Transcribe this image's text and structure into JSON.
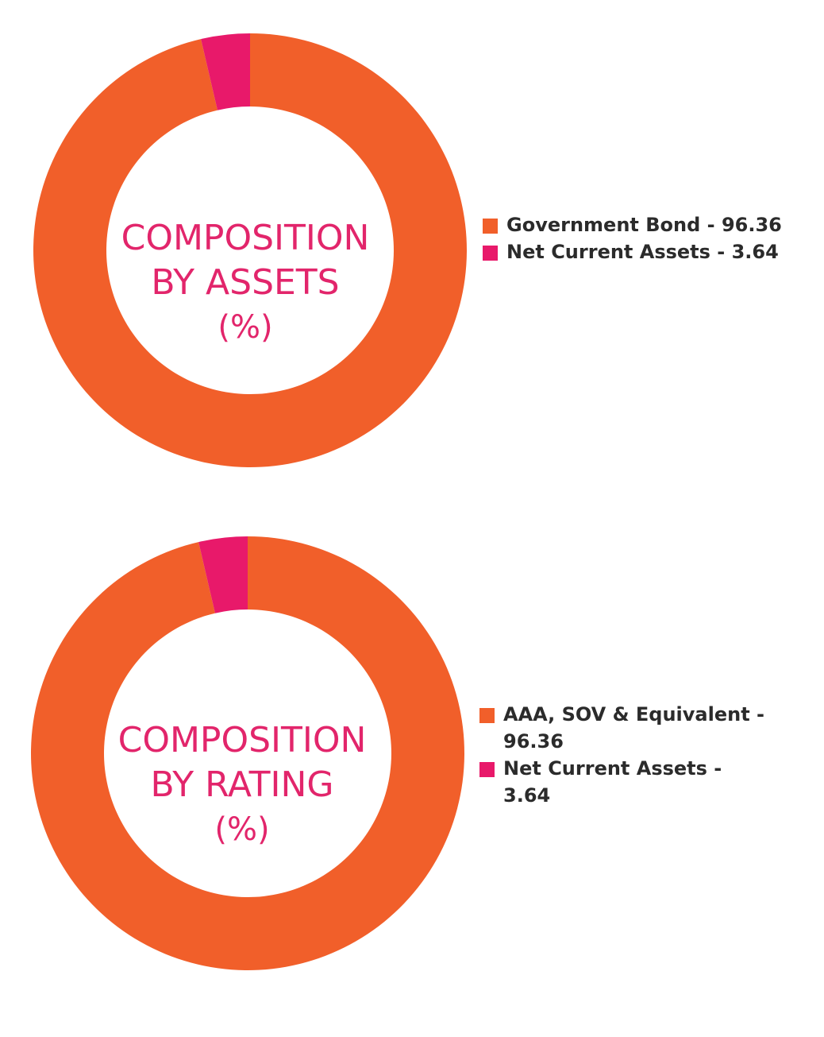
{
  "colors": {
    "primary": "#f15f2a",
    "secondary": "#e8196a",
    "title": "#e2256b",
    "legend_text": "#2b2b2b"
  },
  "chart_data": [
    {
      "type": "pie",
      "variant": "donut",
      "title_lines": [
        "COMPOSITION",
        "BY ASSETS",
        "(%)"
      ],
      "series": [
        {
          "name": "Government Bond",
          "value": 96.36,
          "color": "#f15f2a",
          "label": "Government Bond - 96.36"
        },
        {
          "name": "Net Current Assets",
          "value": 3.64,
          "color": "#e8196a",
          "label": "Net Current Assets - 3.64"
        }
      ],
      "legend_position": "right"
    },
    {
      "type": "pie",
      "variant": "donut",
      "title_lines": [
        "COMPOSITION",
        "BY RATING",
        "(%)"
      ],
      "series": [
        {
          "name": "AAA, SOV & Equivalent",
          "value": 96.36,
          "color": "#f15f2a",
          "label": "AAA, SOV & Equivalent - 96.36"
        },
        {
          "name": "Net Current Assets",
          "value": 3.64,
          "color": "#e8196a",
          "label": "Net Current Assets - 3.64"
        }
      ],
      "legend_position": "right"
    }
  ]
}
